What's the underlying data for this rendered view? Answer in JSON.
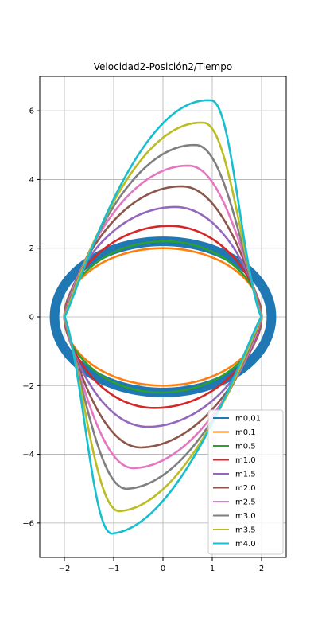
{
  "chart_data": {
    "type": "line",
    "title": "Velocidad2-Posición2/Tiempo",
    "xlabel": "",
    "ylabel": "",
    "xlim": [
      -2.5,
      2.5
    ],
    "ylim": [
      -7,
      7
    ],
    "xticks": [
      -2,
      -1,
      0,
      1,
      2
    ],
    "xtick_labels": [
      "−2",
      "−1",
      "0",
      "1",
      "2"
    ],
    "yticks": [
      -6,
      -4,
      -2,
      0,
      2,
      4,
      6
    ],
    "ytick_labels": [
      "−6",
      "−4",
      "−2",
      "0",
      "2",
      "4",
      "6"
    ],
    "grid": true,
    "legend_position": "lower right",
    "series": [
      {
        "name": "m0.01",
        "color": "#1f77b4",
        "peak_velocity": 2.2,
        "amplitude": 2.2
      },
      {
        "name": "m0.1",
        "color": "#ff7f0e",
        "peak_velocity": 2.0,
        "amplitude": 2.0
      },
      {
        "name": "m0.5",
        "color": "#2ca02c",
        "peak_velocity": 2.2,
        "amplitude": 2.0
      },
      {
        "name": "m1.0",
        "color": "#d62728",
        "peak_velocity": 2.65,
        "amplitude": 2.0
      },
      {
        "name": "m1.5",
        "color": "#9467bd",
        "peak_velocity": 3.2,
        "amplitude": 2.0
      },
      {
        "name": "m2.0",
        "color": "#8c564b",
        "peak_velocity": 3.8,
        "amplitude": 2.0
      },
      {
        "name": "m2.5",
        "color": "#e377c2",
        "peak_velocity": 4.4,
        "amplitude": 2.0
      },
      {
        "name": "m3.0",
        "color": "#7f7f7f",
        "peak_velocity": 5.0,
        "amplitude": 2.0
      },
      {
        "name": "m3.5",
        "color": "#bcbd22",
        "peak_velocity": 5.65,
        "amplitude": 2.0
      },
      {
        "name": "m4.0",
        "color": "#17becf",
        "peak_velocity": 6.3,
        "amplitude": 2.0
      }
    ]
  }
}
